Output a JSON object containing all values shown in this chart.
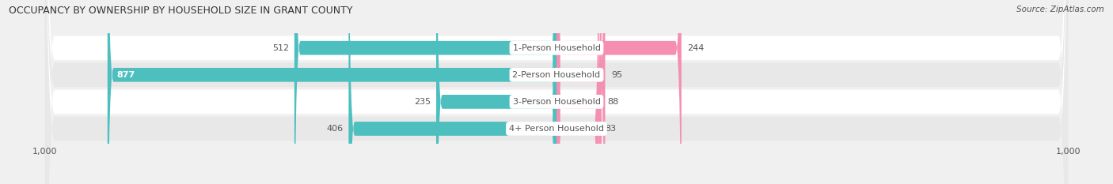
{
  "title": "OCCUPANCY BY OWNERSHIP BY HOUSEHOLD SIZE IN GRANT COUNTY",
  "source": "Source: ZipAtlas.com",
  "categories": [
    "1-Person Household",
    "2-Person Household",
    "3-Person Household",
    "4+ Person Household"
  ],
  "owner_values": [
    512,
    877,
    235,
    406
  ],
  "renter_values": [
    244,
    95,
    88,
    83
  ],
  "owner_color": "#4DBFBF",
  "renter_color": "#F48FB1",
  "axis_max": 1000,
  "background_color": "#f0f0f0",
  "row_colors": [
    "#ffffff",
    "#e8e8e8"
  ],
  "label_color": "#555555",
  "title_color": "#333333",
  "bar_height": 0.52,
  "center_label_bg": "#ffffff",
  "owner_label_inside_color": "#ffffff",
  "owner_label_outside_color": "#555555"
}
